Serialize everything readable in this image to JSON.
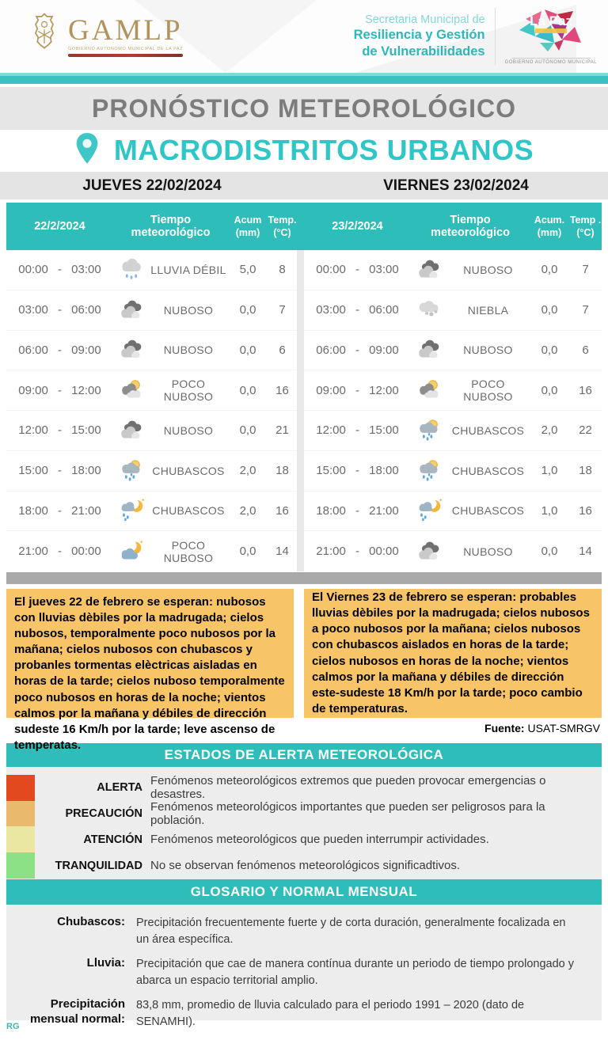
{
  "header": {
    "gamlp_name": "GAMLP",
    "gamlp_sub": "GOBIERNO AUTONOMO MUNICIPAL DE LA PAZ",
    "secretaria_line1": "Secretaria Municipal de",
    "secretaria_line2": "Resiliencia y Gestión",
    "secretaria_line3": "de Vulnerabilidades",
    "lapaz_name": "La Paz",
    "lapaz_sub": "GOBIERNO AUTÓNOMO MUNICIPAL"
  },
  "titles": {
    "main": "PRONÓSTICO METEOROLÓGICO",
    "subtitle": "MACRODISTRITOS URBANOS",
    "day_left": "JUEVES 22/02/2024",
    "day_right": "VIERNES 23/02/2024"
  },
  "tables": [
    {
      "date": "22/2/2024",
      "col_tiempo": "Tiempo meteorológico",
      "col_acum_1": "Acum",
      "col_acum_2": "(mm)",
      "col_temp_1": "Temp.",
      "col_temp_2": "(°C)",
      "rows": [
        {
          "time": "00:00 - 03:00",
          "icon": "rain-cloud-icon",
          "condition": "LLUVIA DÉBIL",
          "acum": "5,0",
          "temp": "8"
        },
        {
          "time": "03:00 - 06:00",
          "icon": "clouds-icon",
          "condition": "NUBOSO",
          "acum": "0,0",
          "temp": "7"
        },
        {
          "time": "06:00 - 09:00",
          "icon": "clouds-icon",
          "condition": "NUBOSO",
          "acum": "0,0",
          "temp": "6"
        },
        {
          "time": "09:00 - 12:00",
          "icon": "sun-cloud-icon",
          "condition": "POCO NUBOSO",
          "acum": "0,0",
          "temp": "16"
        },
        {
          "time": "12:00 - 15:00",
          "icon": "clouds-icon",
          "condition": "NUBOSO",
          "acum": "0,0",
          "temp": "21"
        },
        {
          "time": "15:00 - 18:00",
          "icon": "sun-rain-icon",
          "condition": "CHUBASCOS",
          "acum": "2,0",
          "temp": "18"
        },
        {
          "time": "18:00 - 21:00",
          "icon": "moon-rain-icon",
          "condition": "CHUBASCOS",
          "acum": "2,0",
          "temp": "16"
        },
        {
          "time": "21:00 - 00:00",
          "icon": "moon-clouds-icon",
          "condition": "POCO NUBOSO",
          "acum": "0,0",
          "temp": "14"
        }
      ]
    },
    {
      "date": "23/2/2024",
      "col_tiempo": "Tiempo meteorológico",
      "col_acum_1": "Acum.",
      "col_acum_2": "(mm)",
      "col_temp_1": "Temp .",
      "col_temp_2": "(°C)",
      "rows": [
        {
          "time": "00:00 - 03:00",
          "icon": "clouds-icon",
          "condition": "NUBOSO",
          "acum": "0,0",
          "temp": "7"
        },
        {
          "time": "03:00 - 06:00",
          "icon": "fog-icon",
          "condition": "NIEBLA",
          "acum": "0,0",
          "temp": "7"
        },
        {
          "time": "06:00 - 09:00",
          "icon": "clouds-icon",
          "condition": "NUBOSO",
          "acum": "0,0",
          "temp": "6"
        },
        {
          "time": "09:00 - 12:00",
          "icon": "sun-cloud-icon",
          "condition": "POCO NUBOSO",
          "acum": "0,0",
          "temp": "16"
        },
        {
          "time": "12:00 - 15:00",
          "icon": "sun-rain-icon",
          "condition": "CHUBASCOS",
          "acum": "2,0",
          "temp": "22"
        },
        {
          "time": "15:00 - 18:00",
          "icon": "sun-rain-icon",
          "condition": "CHUBASCOS",
          "acum": "1,0",
          "temp": "18"
        },
        {
          "time": "18:00 - 21:00",
          "icon": "moon-rain-icon",
          "condition": "CHUBASCOS",
          "acum": "1,0",
          "temp": "16"
        },
        {
          "time": "21:00 - 00:00",
          "icon": "clouds-icon",
          "condition": "NUBOSO",
          "acum": "0,0",
          "temp": "14"
        }
      ]
    }
  ],
  "summaries": {
    "left": "El jueves 22 de febrero se esperan: nubosos con lluvias dèbiles por la madrugada; cielos nubosos, temporalmente poco nubosos por la mañana; cielos nubosos con chubascos y probanles tormentas elèctricas aisladas en horas de la tarde; cielos nuboso  temporalmente poco nubosos en horas de la noche; vientos calmos por la mañana y débiles de dirección sudeste 16 Km/h por la tarde; leve ascenso de temperatas.",
    "right": "El Viernes 23 de febrero se esperan: probables lluvias dèbiles por la madrugada; cielos nubosos a poco nubosos  por la mañana; cielos nubosos con chubascos  aislados en horas de la tarde; cielos nubosos  en horas de la noche; vientos calmos por la mañana y débiles de dirección este-sudeste 18 Km/h por la tarde; poco cambio de temperaturas.",
    "source_label": "Fuente:",
    "source_value": " USAT-SMRGV"
  },
  "alerts": {
    "title": "ESTADOS DE ALERTA METEOROLÓGICA",
    "items": [
      {
        "label": "ALERTA",
        "color": "#e2491f",
        "description": "Fenómenos meteorológicos extremos que pueden provocar emergencias o desastres."
      },
      {
        "label": "PRECAUCIÓN",
        "color": "#e9ba6e",
        "description": "Fenómenos meteorológicos importantes que pueden ser peligrosos para la población."
      },
      {
        "label": "ATENCIÓN",
        "color": "#e9e7a2",
        "description": "Fenómenos meteorológicos que pueden interrumpir actividades."
      },
      {
        "label": "TRANQUILIDAD",
        "color": "#8ce187",
        "description": "No se observan fenómenos meteorológicos significadtivos."
      }
    ]
  },
  "glossary": {
    "title": "GLOSARIO Y NORMAL MENSUAL",
    "items": [
      {
        "term": "Chubascos:",
        "definition": "Precipitación frecuentemente fuerte y de corta duración, generalmente focalizada en un área específica."
      },
      {
        "term": "Lluvia:",
        "definition": "Precipitación que cae de manera contínua durante un periodo de tiempo prolongado y abarca un espacio territorial amplio."
      },
      {
        "term": "Precipitación mensual normal:",
        "definition": "83,8 mm, promedio de lluvia calculado para el periodo 1991 – 2020 (dato de SENAMHI)."
      }
    ]
  },
  "footer": {
    "initials": "RG"
  },
  "colors": {
    "accent_teal": "#2fbdba",
    "title_teal": "#2ec6c6",
    "box_orange": "#f8c468",
    "bar_gray": "#a9a9a9"
  }
}
